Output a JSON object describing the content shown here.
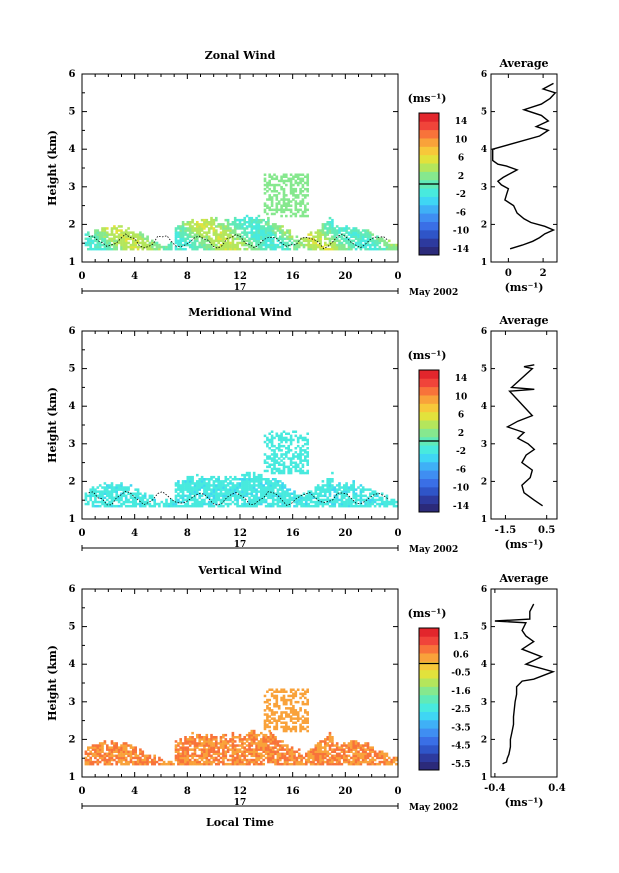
{
  "x_ticks": [
    "0",
    "4",
    "8",
    "12",
    "16",
    "20",
    "0"
  ],
  "day_label": "17",
  "date_label": "May 2002",
  "xlabel": "Local Time",
  "ylabel": "Height (km)",
  "y_ticks": [
    "1",
    "2",
    "3",
    "4",
    "5",
    "6"
  ],
  "colorbar_unit": "(ms⁻¹)",
  "avg_xlabel": "(ms⁻¹)",
  "colormap": [
    "#2b2a7a",
    "#2d3a9e",
    "#2f55c8",
    "#3a6fe6",
    "#3f8ef2",
    "#3fb0f6",
    "#3fd6f4",
    "#48eade",
    "#60eab8",
    "#86e88e",
    "#b4e65c",
    "#e2e23c",
    "#f7c83a",
    "#f9a23a",
    "#f8733a",
    "#f0443a",
    "#e2262c"
  ],
  "chart_data": [
    {
      "type": "heatmap",
      "title": "Zonal Wind",
      "xlabel": "",
      "ylabel": "Height (km)",
      "xlim": [
        0,
        24
      ],
      "ylim": [
        1,
        6
      ],
      "colorbar": {
        "ticks": [
          "14",
          "10",
          "6",
          "2",
          "-2",
          "-6",
          "-10",
          "-14"
        ],
        "range": [
          -16,
          16
        ]
      },
      "field": "zonal",
      "average": {
        "title": "Average",
        "xlim": [
          -1,
          2.8
        ],
        "x_ticks": [
          {
            "v": 0,
            "t": "0"
          },
          {
            "v": 2,
            "t": "2"
          }
        ],
        "height": [
          1.35,
          1.45,
          1.55,
          1.65,
          1.75,
          1.85,
          1.95,
          2.05,
          2.15,
          2.3,
          2.5,
          2.65,
          2.8,
          2.95,
          3.05,
          3.15,
          3.25,
          3.35,
          3.45,
          3.55,
          3.6,
          3.7,
          4.0,
          4.35,
          4.5,
          4.6,
          4.75,
          4.9,
          5.05,
          5.2,
          5.35,
          5.5,
          5.6,
          5.75
        ],
        "value": [
          0.1,
          0.8,
          1.4,
          1.8,
          2.1,
          2.6,
          2.1,
          1.3,
          0.9,
          0.5,
          0.3,
          -0.2,
          -0.1,
          0.0,
          -0.4,
          -0.6,
          -0.3,
          0.1,
          0.5,
          -0.1,
          -0.6,
          -0.9,
          -0.9,
          1.8,
          2.3,
          1.6,
          2.3,
          1.9,
          0.9,
          1.9,
          2.4,
          2.7,
          2.0,
          2.6
        ]
      }
    },
    {
      "type": "heatmap",
      "title": "Meridional Wind",
      "xlabel": "",
      "ylabel": "Height (km)",
      "xlim": [
        0,
        24
      ],
      "ylim": [
        1,
        6
      ],
      "colorbar": {
        "ticks": [
          "14",
          "10",
          "6",
          "2",
          "-2",
          "-6",
          "-10",
          "-14"
        ],
        "range": [
          -16,
          16
        ]
      },
      "field": "meridional",
      "average": {
        "title": "Average",
        "xlim": [
          -2.2,
          1.0
        ],
        "x_ticks": [
          {
            "v": -1.5,
            "t": "-1.5"
          },
          {
            "v": 0.5,
            "t": "0.5"
          }
        ],
        "height": [
          1.35,
          1.5,
          1.7,
          1.9,
          2.1,
          2.3,
          2.5,
          2.7,
          2.85,
          3.0,
          3.15,
          3.3,
          3.45,
          3.6,
          3.75,
          4.4,
          4.45,
          4.5,
          5.0,
          5.05,
          5.1
        ],
        "value": [
          0.3,
          -0.1,
          -0.6,
          -0.7,
          -0.3,
          -0.2,
          -0.7,
          -0.5,
          -0.1,
          -0.4,
          -0.9,
          -0.6,
          -1.4,
          -0.9,
          -0.2,
          -1.3,
          -0.1,
          -1.2,
          -0.2,
          -0.6,
          -0.1
        ]
      }
    },
    {
      "type": "heatmap",
      "title": "Vertical Wind",
      "xlabel": "Local Time",
      "ylabel": "Height (km)",
      "xlim": [
        0,
        24
      ],
      "ylim": [
        1,
        6
      ],
      "colorbar": {
        "ticks": [
          "1.5",
          "0.6",
          "-0.5",
          "-1.6",
          "-2.5",
          "-3.5",
          "-4.5",
          "-5.5"
        ],
        "range": [
          -6,
          2
        ]
      },
      "field": "vertical",
      "average": {
        "title": "Average",
        "xlim": [
          -0.45,
          0.4
        ],
        "x_ticks": [
          {
            "v": -0.4,
            "t": "-0.4"
          },
          {
            "v": 0.4,
            "t": "0.4"
          }
        ],
        "height": [
          1.35,
          1.4,
          1.5,
          1.6,
          1.8,
          2.0,
          2.2,
          2.4,
          2.6,
          2.8,
          3.0,
          3.2,
          3.4,
          3.55,
          3.6,
          3.8,
          4.0,
          4.2,
          4.4,
          4.6,
          4.75,
          4.9,
          5.1,
          5.15,
          5.2,
          5.4,
          5.6
        ],
        "value": [
          -0.3,
          -0.25,
          -0.24,
          -0.22,
          -0.2,
          -0.2,
          -0.18,
          -0.16,
          -0.16,
          -0.15,
          -0.14,
          -0.12,
          -0.12,
          -0.05,
          0.1,
          0.35,
          0.0,
          0.2,
          -0.05,
          0.1,
          0.0,
          -0.05,
          0.0,
          -0.4,
          0.05,
          0.05,
          0.1
        ]
      }
    }
  ]
}
